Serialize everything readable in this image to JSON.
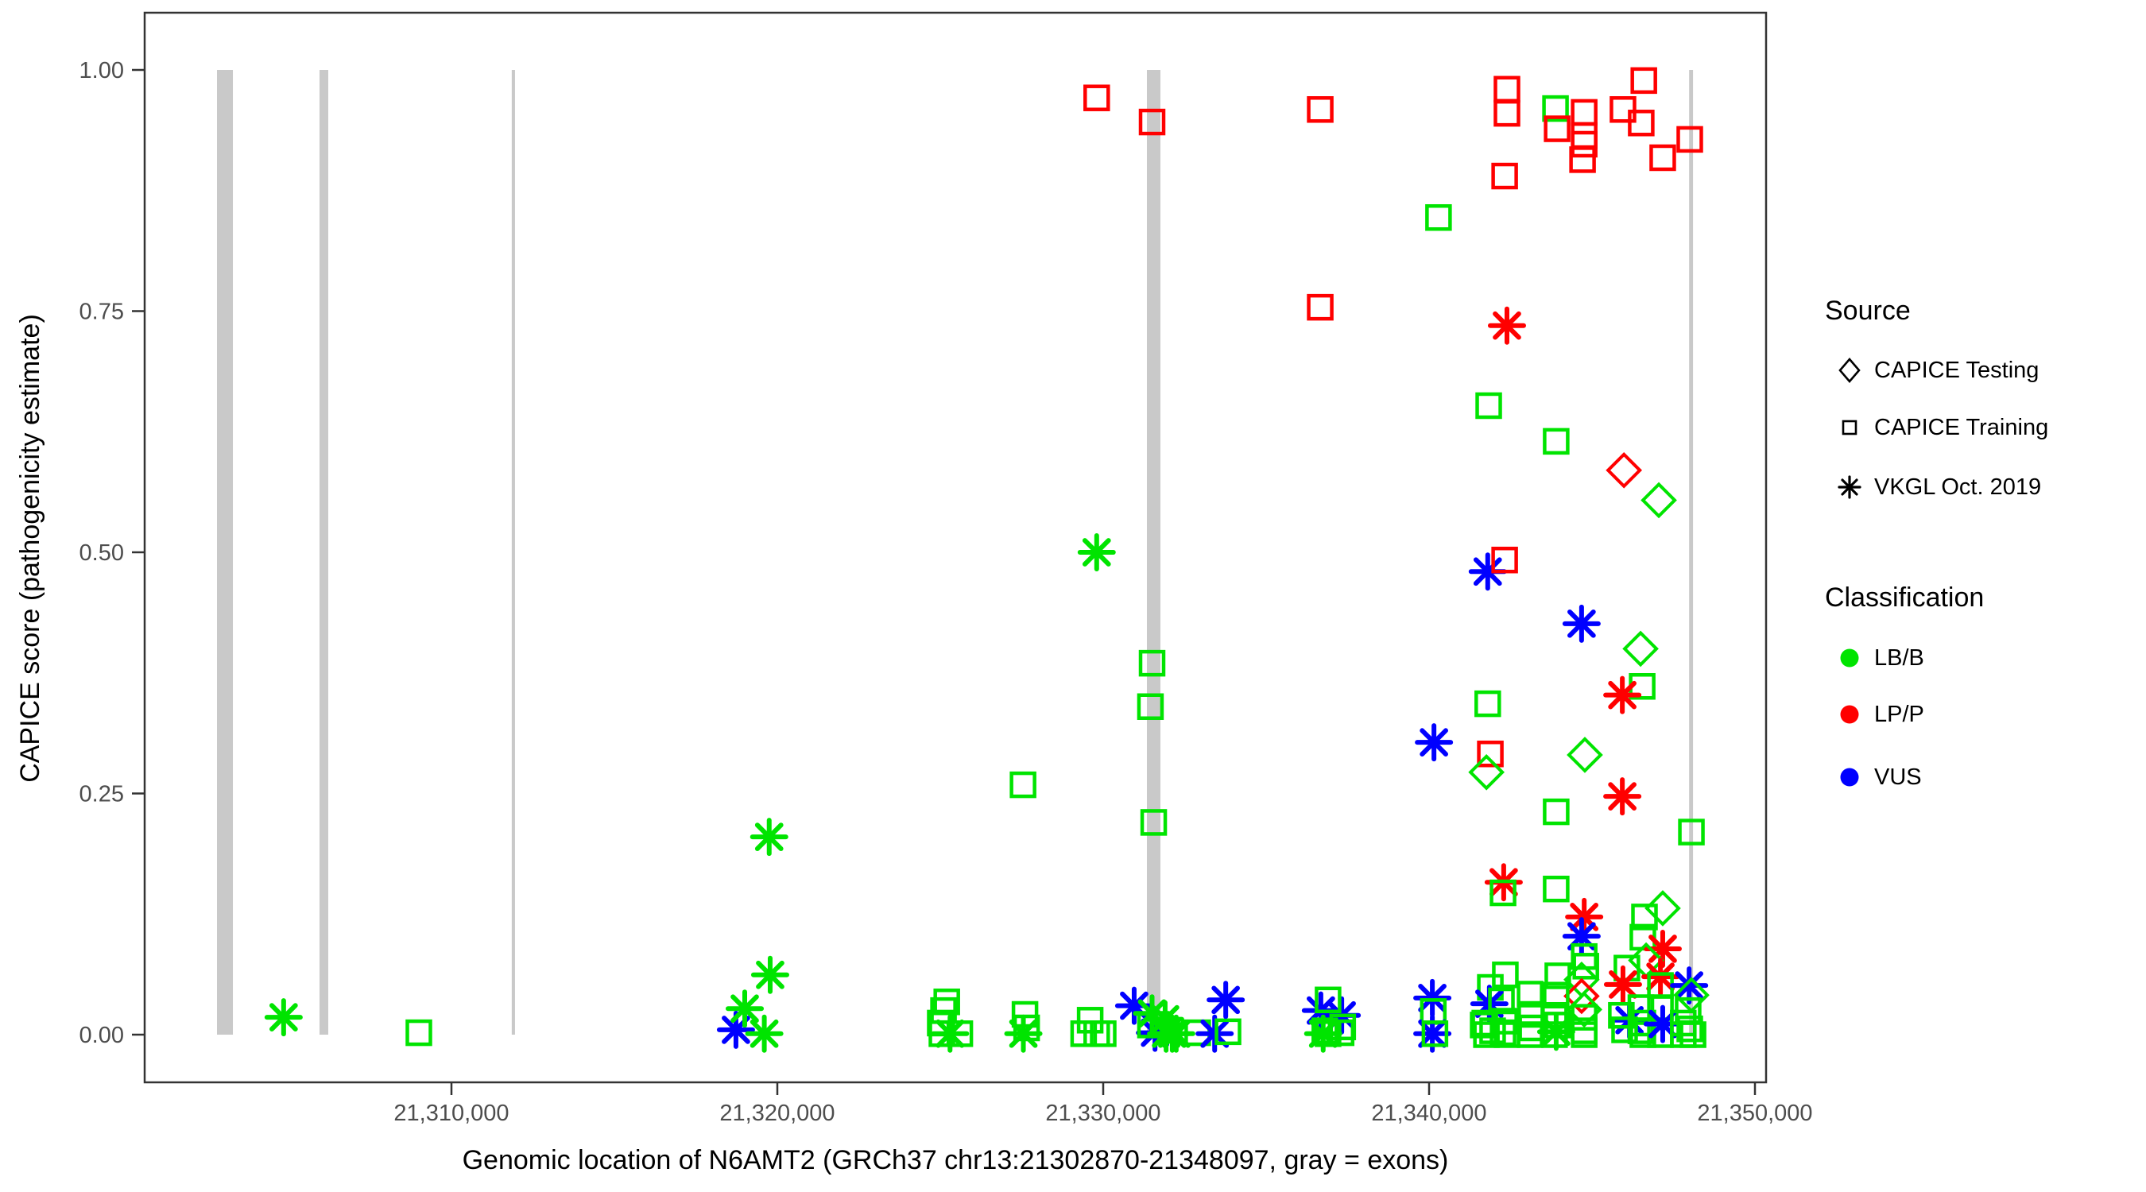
{
  "legend": {
    "source_title": "Source",
    "source_items": [
      {
        "label": "CAPICE Testing",
        "shape": "diamond"
      },
      {
        "label": "CAPICE Training",
        "shape": "square"
      },
      {
        "label": "VKGL Oct. 2019",
        "shape": "asterisk"
      }
    ],
    "classification_title": "Classification",
    "classification_items": [
      {
        "label": "LB/B",
        "color": "#00e400"
      },
      {
        "label": "LP/P",
        "color": "#ff0000"
      },
      {
        "label": "VUS",
        "color": "#0000ff"
      }
    ]
  },
  "colors": {
    "lbb": "#00e400",
    "lpp": "#ff0000",
    "vus": "#0000ff",
    "exon": "#c9c9c9",
    "axis": "#333333",
    "tick_label": "#4d4d4d",
    "panel_border": "#333333"
  },
  "chart_data": {
    "type": "scatter",
    "title": "",
    "xlabel": "Genomic location of N6AMT2 (GRCh37 chr13:21302870-21348097, gray = exons)",
    "ylabel": "CAPICE score (pathogenicity estimate)",
    "x_ticks": [
      {
        "g": 21310000,
        "label": "21,310,000"
      },
      {
        "g": 21320000,
        "label": "21,320,000"
      },
      {
        "g": 21330000,
        "label": "21,330,000"
      },
      {
        "g": 21340000,
        "label": "21,340,000"
      },
      {
        "g": 21350000,
        "label": "21,350,000"
      }
    ],
    "y_ticks": [
      {
        "v": 0.0,
        "label": "0.00"
      },
      {
        "v": 0.25,
        "label": "0.25"
      },
      {
        "v": 0.5,
        "label": "0.50"
      },
      {
        "v": 0.75,
        "label": "0.75"
      },
      {
        "v": 1.0,
        "label": "1.00"
      }
    ],
    "xlim": [
      21300600,
      21350350
    ],
    "ylim": [
      -0.05,
      1.05
    ],
    "grid": false,
    "legend_position": "right",
    "gray_note": "gray vertical bars = exons, drawn from score 0 to 1",
    "exons": [
      [
        21302805,
        21303293
      ],
      [
        21305951,
        21306220
      ],
      [
        21311850,
        21311950
      ],
      [
        21331341,
        21331756
      ],
      [
        21347980,
        21348100
      ]
    ],
    "point_format": [
      "genomic_position",
      "capice_score",
      "shape(sq|di|as)",
      "class(b|p|v)"
    ],
    "points": [
      [
        21304850,
        0.018,
        "as",
        "b"
      ],
      [
        21309000,
        0.002,
        "sq",
        "b"
      ],
      [
        21318730,
        0.005,
        "as",
        "v"
      ],
      [
        21319000,
        0.027,
        "as",
        "b"
      ],
      [
        21319600,
        0.001,
        "as",
        "b"
      ],
      [
        21319750,
        0.205,
        "as",
        "b"
      ],
      [
        21319780,
        0.062,
        "as",
        "b"
      ],
      [
        21325200,
        0.034,
        "sq",
        "b"
      ],
      [
        21325100,
        0.025,
        "sq",
        "b"
      ],
      [
        21325000,
        0.012,
        "sq",
        "b"
      ],
      [
        21325050,
        0.001,
        "sq",
        "b"
      ],
      [
        21325600,
        0.001,
        "sq",
        "b"
      ],
      [
        21325300,
        0.001,
        "as",
        "b"
      ],
      [
        21327600,
        0.021,
        "sq",
        "b"
      ],
      [
        21327650,
        0.007,
        "sq",
        "b"
      ],
      [
        21327550,
        0.001,
        "as",
        "b"
      ],
      [
        21327540,
        0.259,
        "sq",
        "b"
      ],
      [
        21329600,
        0.015,
        "sq",
        "b"
      ],
      [
        21329400,
        0.001,
        "sq",
        "b"
      ],
      [
        21329800,
        0.001,
        "sq",
        "b"
      ],
      [
        21330000,
        0.001,
        "sq",
        "b"
      ],
      [
        21329800,
        0.5,
        "as",
        "b"
      ],
      [
        21329800,
        0.971,
        "sq",
        "p"
      ],
      [
        21331500,
        0.946,
        "sq",
        "p"
      ],
      [
        21331500,
        0.385,
        "sq",
        "b"
      ],
      [
        21331450,
        0.34,
        "sq",
        "b"
      ],
      [
        21331550,
        0.22,
        "sq",
        "b"
      ],
      [
        21330950,
        0.03,
        "as",
        "v"
      ],
      [
        21331590,
        0.002,
        "as",
        "v"
      ],
      [
        21331500,
        0.022,
        "as",
        "b"
      ],
      [
        21331900,
        0.016,
        "as",
        "b"
      ],
      [
        21331930,
        0.001,
        "as",
        "b"
      ],
      [
        21332120,
        0.001,
        "as",
        "b"
      ],
      [
        21331450,
        0.01,
        "sq",
        "b"
      ],
      [
        21332240,
        0.001,
        "as",
        "b"
      ],
      [
        21332900,
        0.002,
        "sq",
        "b"
      ],
      [
        21333420,
        0.001,
        "as",
        "v"
      ],
      [
        21333830,
        0.003,
        "sq",
        "b"
      ],
      [
        21333760,
        0.036,
        "as",
        "v"
      ],
      [
        21336660,
        0.959,
        "sq",
        "p"
      ],
      [
        21336660,
        0.754,
        "sq",
        "p"
      ],
      [
        21336680,
        0.025,
        "as",
        "v"
      ],
      [
        21337320,
        0.02,
        "as",
        "v"
      ],
      [
        21336900,
        0.036,
        "sq",
        "b"
      ],
      [
        21336800,
        0.004,
        "sq",
        "b"
      ],
      [
        21337300,
        0.002,
        "sq",
        "b"
      ],
      [
        21336900,
        0.001,
        "sq",
        "b"
      ],
      [
        21336750,
        0.001,
        "as",
        "b"
      ],
      [
        21337350,
        0.008,
        "sq",
        "b"
      ],
      [
        21340100,
        0.038,
        "as",
        "v"
      ],
      [
        21340130,
        0.024,
        "sq",
        "b"
      ],
      [
        21340100,
        0.001,
        "as",
        "v"
      ],
      [
        21340180,
        0.001,
        "sq",
        "b"
      ],
      [
        21340290,
        0.847,
        "sq",
        "b"
      ],
      [
        21340150,
        0.303,
        "as",
        "v"
      ],
      [
        21341800,
        0.48,
        "as",
        "v"
      ],
      [
        21342320,
        0.492,
        "sq",
        "p"
      ],
      [
        21341830,
        0.652,
        "sq",
        "b"
      ],
      [
        21343900,
        0.615,
        "sq",
        "b"
      ],
      [
        21342390,
        0.735,
        "as",
        "p"
      ],
      [
        21341800,
        0.343,
        "sq",
        "b"
      ],
      [
        21341880,
        0.291,
        "sq",
        "p"
      ],
      [
        21341760,
        0.272,
        "di",
        "b"
      ],
      [
        21342390,
        0.98,
        "sq",
        "p"
      ],
      [
        21342390,
        0.955,
        "sq",
        "p"
      ],
      [
        21342320,
        0.89,
        "sq",
        "p"
      ],
      [
        21343880,
        0.96,
        "sq",
        "b"
      ],
      [
        21343930,
        0.939,
        "sq",
        "p"
      ],
      [
        21344760,
        0.956,
        "sq",
        "p"
      ],
      [
        21344760,
        0.932,
        "sq",
        "p"
      ],
      [
        21344760,
        0.923,
        "sq",
        "p"
      ],
      [
        21344710,
        0.907,
        "sq",
        "p"
      ],
      [
        21345950,
        0.959,
        "sq",
        "p"
      ],
      [
        21346510,
        0.945,
        "sq",
        "p"
      ],
      [
        21346590,
        0.989,
        "sq",
        "p"
      ],
      [
        21347170,
        0.909,
        "sq",
        "p"
      ],
      [
        21348000,
        0.928,
        "sq",
        "p"
      ],
      [
        21345980,
        0.585,
        "di",
        "p"
      ],
      [
        21347050,
        0.554,
        "di",
        "b"
      ],
      [
        21344680,
        0.426,
        "as",
        "v"
      ],
      [
        21346490,
        0.4,
        "di",
        "b"
      ],
      [
        21346540,
        0.361,
        "sq",
        "b"
      ],
      [
        21345930,
        0.352,
        "as",
        "p"
      ],
      [
        21344780,
        0.29,
        "di",
        "b"
      ],
      [
        21345930,
        0.247,
        "as",
        "p"
      ],
      [
        21343900,
        0.231,
        "sq",
        "b"
      ],
      [
        21342290,
        0.158,
        "as",
        "p"
      ],
      [
        21342270,
        0.147,
        "sq",
        "b"
      ],
      [
        21343900,
        0.151,
        "sq",
        "b"
      ],
      [
        21344760,
        0.122,
        "as",
        "p"
      ],
      [
        21344680,
        0.102,
        "as",
        "v"
      ],
      [
        21344760,
        0.081,
        "sq",
        "b"
      ],
      [
        21344810,
        0.071,
        "sq",
        "b"
      ],
      [
        21343950,
        0.061,
        "sq",
        "b"
      ],
      [
        21344680,
        0.057,
        "di",
        "b"
      ],
      [
        21344680,
        0.04,
        "di",
        "p"
      ],
      [
        21344760,
        0.026,
        "di",
        "b"
      ],
      [
        21341880,
        0.049,
        "sq",
        "b"
      ],
      [
        21341850,
        0.032,
        "as",
        "v"
      ],
      [
        21342340,
        0.062,
        "sq",
        "b"
      ],
      [
        21342220,
        0.035,
        "sq",
        "b"
      ],
      [
        21342320,
        0.014,
        "sq",
        "b"
      ],
      [
        21342270,
        0.002,
        "sq",
        "b"
      ],
      [
        21342390,
        0.0,
        "sq",
        "b"
      ],
      [
        21343100,
        0.042,
        "sq",
        "b"
      ],
      [
        21343120,
        0.021,
        "sq",
        "b"
      ],
      [
        21343150,
        0.007,
        "sq",
        "b"
      ],
      [
        21343100,
        0.0,
        "sq",
        "b"
      ],
      [
        21341710,
        0.012,
        "sq",
        "b"
      ],
      [
        21341950,
        0.004,
        "sq",
        "b"
      ],
      [
        21341760,
        0.0,
        "sq",
        "b"
      ],
      [
        21341660,
        0.01,
        "sq",
        "b"
      ],
      [
        21343900,
        0.041,
        "sq",
        "b"
      ],
      [
        21343850,
        0.02,
        "sq",
        "b"
      ],
      [
        21343950,
        0.01,
        "sq",
        "b"
      ],
      [
        21343850,
        0.0,
        "sq",
        "b"
      ],
      [
        21343900,
        0.003,
        "as",
        "b"
      ],
      [
        21344760,
        0.018,
        "sq",
        "b"
      ],
      [
        21344760,
        0.004,
        "sq",
        "b"
      ],
      [
        21344760,
        0.0,
        "sq",
        "b"
      ],
      [
        21346070,
        0.069,
        "sq",
        "b"
      ],
      [
        21345950,
        0.052,
        "as",
        "p"
      ],
      [
        21346150,
        0.015,
        "as",
        "v"
      ],
      [
        21345900,
        0.02,
        "sq",
        "b"
      ],
      [
        21346000,
        0.005,
        "sq",
        "b"
      ],
      [
        21347170,
        0.131,
        "di",
        "b"
      ],
      [
        21346610,
        0.122,
        "sq",
        "b"
      ],
      [
        21346560,
        0.101,
        "sq",
        "b"
      ],
      [
        21347170,
        0.089,
        "as",
        "p"
      ],
      [
        21346660,
        0.077,
        "di",
        "b"
      ],
      [
        21347100,
        0.06,
        "as",
        "p"
      ],
      [
        21347100,
        0.051,
        "sq",
        "b"
      ],
      [
        21347980,
        0.051,
        "as",
        "v"
      ],
      [
        21348050,
        0.041,
        "di",
        "b"
      ],
      [
        21347950,
        0.025,
        "sq",
        "b"
      ],
      [
        21346500,
        0.028,
        "sq",
        "b"
      ],
      [
        21347100,
        0.028,
        "sq",
        "b"
      ],
      [
        21346560,
        0.012,
        "sq",
        "b"
      ],
      [
        21346500,
        0.004,
        "sq",
        "b"
      ],
      [
        21347100,
        0.0,
        "sq",
        "b"
      ],
      [
        21346560,
        0.0,
        "sq",
        "b"
      ],
      [
        21347170,
        0.011,
        "as",
        "v"
      ],
      [
        21347800,
        0.012,
        "sq",
        "b"
      ],
      [
        21348000,
        0.006,
        "sq",
        "b"
      ],
      [
        21347800,
        0.0,
        "sq",
        "b"
      ],
      [
        21348100,
        0.0,
        "sq",
        "b"
      ],
      [
        21348050,
        0.21,
        "sq",
        "b"
      ]
    ]
  }
}
